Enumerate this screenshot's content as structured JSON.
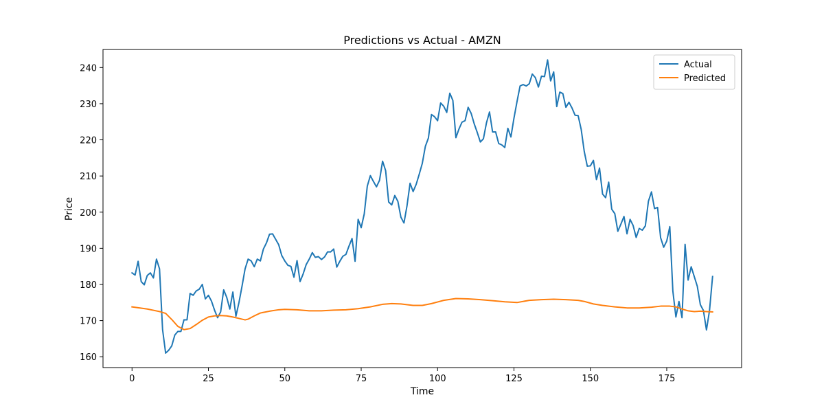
{
  "chart_data": {
    "type": "line",
    "title": "Predictions vs Actual - AMZN",
    "xlabel": "Time",
    "ylabel": "Price",
    "xlim": [
      -9.5,
      199.5
    ],
    "ylim": [
      157.0,
      245.0
    ],
    "xticks": [
      0,
      25,
      50,
      75,
      100,
      125,
      150,
      175
    ],
    "yticks": [
      160,
      170,
      180,
      190,
      200,
      210,
      220,
      230,
      240
    ],
    "grid": false,
    "legend_position": "top-right",
    "series": [
      {
        "name": "Actual",
        "color": "#1f77b4",
        "points": [
          [
            0,
            183.2
          ],
          [
            1,
            182.6
          ],
          [
            2,
            186.4
          ],
          [
            3,
            180.8
          ],
          [
            4,
            179.9
          ],
          [
            5,
            182.5
          ],
          [
            6,
            183.2
          ],
          [
            7,
            181.8
          ],
          [
            8,
            187.0
          ],
          [
            9,
            184.3
          ],
          [
            10,
            167.5
          ],
          [
            11,
            161.0
          ],
          [
            12,
            161.8
          ],
          [
            13,
            163.0
          ],
          [
            14,
            166.0
          ],
          [
            15,
            167.0
          ],
          [
            16,
            167.0
          ],
          [
            17,
            170.2
          ],
          [
            18,
            170.2
          ],
          [
            19,
            177.5
          ],
          [
            20,
            177.0
          ],
          [
            21,
            178.2
          ],
          [
            22,
            178.7
          ],
          [
            23,
            180.0
          ],
          [
            24,
            176.0
          ],
          [
            25,
            177.0
          ],
          [
            26,
            175.4
          ],
          [
            27,
            172.9
          ],
          [
            28,
            170.8
          ],
          [
            29,
            172.4
          ],
          [
            30,
            178.5
          ],
          [
            31,
            176.4
          ],
          [
            32,
            173.2
          ],
          [
            33,
            177.9
          ],
          [
            34,
            171.2
          ],
          [
            35,
            175.0
          ],
          [
            36,
            179.5
          ],
          [
            37,
            184.3
          ],
          [
            38,
            187.0
          ],
          [
            39,
            186.5
          ],
          [
            40,
            184.9
          ],
          [
            41,
            187.0
          ],
          [
            42,
            186.5
          ],
          [
            43,
            189.8
          ],
          [
            44,
            191.5
          ],
          [
            45,
            193.9
          ],
          [
            46,
            194.0
          ],
          [
            47,
            192.5
          ],
          [
            48,
            191.0
          ],
          [
            49,
            188.0
          ],
          [
            50,
            186.5
          ],
          [
            51,
            185.3
          ],
          [
            52,
            185.0
          ],
          [
            53,
            182.0
          ],
          [
            54,
            186.6
          ],
          [
            55,
            180.8
          ],
          [
            56,
            182.9
          ],
          [
            57,
            185.5
          ],
          [
            58,
            187.0
          ],
          [
            59,
            188.8
          ],
          [
            60,
            187.5
          ],
          [
            61,
            187.7
          ],
          [
            62,
            186.9
          ],
          [
            63,
            187.6
          ],
          [
            64,
            189.0
          ],
          [
            65,
            189.0
          ],
          [
            66,
            189.8
          ],
          [
            67,
            184.8
          ],
          [
            68,
            186.4
          ],
          [
            69,
            187.8
          ],
          [
            70,
            188.3
          ],
          [
            71,
            190.6
          ],
          [
            72,
            192.7
          ],
          [
            73,
            186.4
          ],
          [
            74,
            198.0
          ],
          [
            75,
            195.7
          ],
          [
            76,
            199.5
          ],
          [
            77,
            207.2
          ],
          [
            78,
            210.1
          ],
          [
            79,
            208.5
          ],
          [
            80,
            207.0
          ],
          [
            81,
            208.8
          ],
          [
            82,
            214.1
          ],
          [
            83,
            211.5
          ],
          [
            84,
            202.8
          ],
          [
            85,
            202.0
          ],
          [
            86,
            204.6
          ],
          [
            87,
            203.0
          ],
          [
            88,
            198.6
          ],
          [
            89,
            197.0
          ],
          [
            90,
            201.8
          ],
          [
            91,
            208.0
          ],
          [
            92,
            205.7
          ],
          [
            93,
            207.7
          ],
          [
            94,
            210.5
          ],
          [
            95,
            213.5
          ],
          [
            96,
            218.2
          ],
          [
            97,
            220.5
          ],
          [
            98,
            227.0
          ],
          [
            99,
            226.4
          ],
          [
            100,
            225.3
          ],
          [
            101,
            230.2
          ],
          [
            102,
            229.3
          ],
          [
            103,
            227.6
          ],
          [
            104,
            232.9
          ],
          [
            105,
            230.9
          ],
          [
            106,
            220.6
          ],
          [
            107,
            223.0
          ],
          [
            108,
            224.9
          ],
          [
            109,
            225.3
          ],
          [
            110,
            229.0
          ],
          [
            111,
            227.3
          ],
          [
            112,
            224.4
          ],
          [
            113,
            222.0
          ],
          [
            114,
            219.4
          ],
          [
            115,
            220.3
          ],
          [
            116,
            224.7
          ],
          [
            117,
            227.7
          ],
          [
            118,
            222.2
          ],
          [
            119,
            222.2
          ],
          [
            120,
            219.0
          ],
          [
            121,
            218.6
          ],
          [
            122,
            217.9
          ],
          [
            123,
            223.2
          ],
          [
            124,
            220.8
          ],
          [
            125,
            226.0
          ],
          [
            126,
            230.6
          ],
          [
            127,
            234.9
          ],
          [
            128,
            235.3
          ],
          [
            129,
            234.9
          ],
          [
            130,
            235.5
          ],
          [
            131,
            238.2
          ],
          [
            132,
            237.2
          ],
          [
            133,
            234.6
          ],
          [
            134,
            237.6
          ],
          [
            135,
            237.5
          ],
          [
            136,
            242.1
          ],
          [
            137,
            236.3
          ],
          [
            138,
            238.8
          ],
          [
            139,
            229.2
          ],
          [
            140,
            233.2
          ],
          [
            141,
            232.8
          ],
          [
            142,
            229.0
          ],
          [
            143,
            230.4
          ],
          [
            144,
            228.8
          ],
          [
            145,
            226.8
          ],
          [
            146,
            226.7
          ],
          [
            147,
            222.9
          ],
          [
            148,
            216.8
          ],
          [
            149,
            212.7
          ],
          [
            150,
            212.8
          ],
          [
            151,
            214.3
          ],
          [
            152,
            209.0
          ],
          [
            153,
            212.2
          ],
          [
            154,
            205.0
          ],
          [
            155,
            204.0
          ],
          [
            156,
            208.3
          ],
          [
            157,
            200.8
          ],
          [
            158,
            199.6
          ],
          [
            159,
            194.7
          ],
          [
            160,
            196.7
          ],
          [
            161,
            198.8
          ],
          [
            162,
            194.0
          ],
          [
            163,
            198.0
          ],
          [
            164,
            196.3
          ],
          [
            165,
            193.0
          ],
          [
            166,
            195.5
          ],
          [
            167,
            195.0
          ],
          [
            168,
            196.2
          ],
          [
            169,
            203.0
          ],
          [
            170,
            205.6
          ],
          [
            171,
            201.0
          ],
          [
            172,
            201.3
          ],
          [
            173,
            192.9
          ],
          [
            174,
            190.3
          ],
          [
            175,
            192.0
          ],
          [
            176,
            196.0
          ],
          [
            177,
            178.2
          ],
          [
            178,
            171.0
          ],
          [
            179,
            175.3
          ],
          [
            180,
            170.8
          ],
          [
            181,
            191.1
          ],
          [
            182,
            181.2
          ],
          [
            183,
            184.9
          ],
          [
            184,
            182.2
          ],
          [
            185,
            179.5
          ],
          [
            186,
            174.4
          ],
          [
            187,
            172.8
          ],
          [
            188,
            167.4
          ],
          [
            189,
            172.8
          ],
          [
            190,
            182.2
          ]
        ]
      },
      {
        "name": "Predicted",
        "color": "#ff7f0e",
        "points": [
          [
            0,
            173.8
          ],
          [
            5,
            173.2
          ],
          [
            9,
            172.5
          ],
          [
            11,
            172.0
          ],
          [
            13,
            170.3
          ],
          [
            15,
            168.4
          ],
          [
            17,
            167.5
          ],
          [
            19,
            167.8
          ],
          [
            21,
            168.9
          ],
          [
            23,
            170.1
          ],
          [
            25,
            171.0
          ],
          [
            27,
            171.3
          ],
          [
            29,
            171.4
          ],
          [
            31,
            171.3
          ],
          [
            33,
            171.0
          ],
          [
            35,
            170.6
          ],
          [
            37,
            170.2
          ],
          [
            38,
            170.4
          ],
          [
            40,
            171.3
          ],
          [
            42,
            172.1
          ],
          [
            45,
            172.6
          ],
          [
            48,
            173.0
          ],
          [
            50,
            173.1
          ],
          [
            54,
            173.0
          ],
          [
            58,
            172.7
          ],
          [
            62,
            172.7
          ],
          [
            66,
            172.9
          ],
          [
            70,
            173.0
          ],
          [
            74,
            173.3
          ],
          [
            78,
            173.8
          ],
          [
            82,
            174.5
          ],
          [
            85,
            174.7
          ],
          [
            88,
            174.6
          ],
          [
            92,
            174.2
          ],
          [
            95,
            174.2
          ],
          [
            98,
            174.7
          ],
          [
            102,
            175.6
          ],
          [
            106,
            176.1
          ],
          [
            110,
            176.0
          ],
          [
            114,
            175.8
          ],
          [
            118,
            175.5
          ],
          [
            122,
            175.2
          ],
          [
            126,
            175.0
          ],
          [
            130,
            175.6
          ],
          [
            134,
            175.8
          ],
          [
            138,
            175.9
          ],
          [
            142,
            175.8
          ],
          [
            146,
            175.6
          ],
          [
            148,
            175.3
          ],
          [
            151,
            174.6
          ],
          [
            154,
            174.2
          ],
          [
            158,
            173.8
          ],
          [
            162,
            173.5
          ],
          [
            166,
            173.5
          ],
          [
            170,
            173.7
          ],
          [
            173,
            174.0
          ],
          [
            176,
            174.0
          ],
          [
            178,
            173.8
          ],
          [
            180,
            173.2
          ],
          [
            182,
            172.7
          ],
          [
            184,
            172.5
          ],
          [
            186,
            172.6
          ],
          [
            188,
            172.5
          ],
          [
            190,
            172.4
          ]
        ]
      }
    ]
  }
}
